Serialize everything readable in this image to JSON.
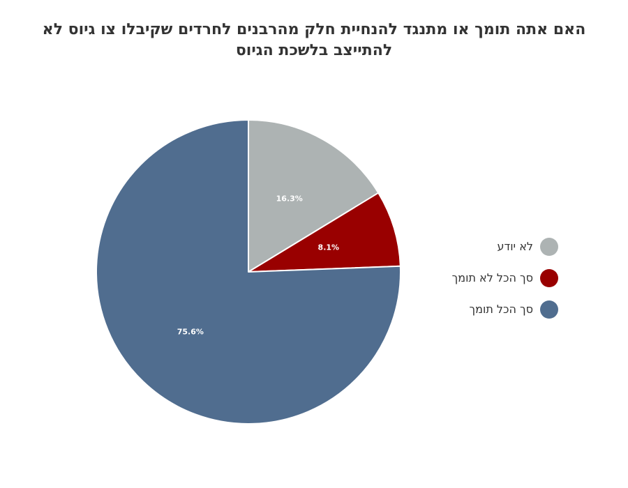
{
  "chart_data": {
    "type": "pie",
    "title": "האם אתה תומך או מתנגד להנחיית חלק מהרבנים לחרדים שקיבלו צו גיוס לא להתייצב בלשכת הגיוס",
    "legend_position": "right",
    "slices": [
      {
        "label": "לא יודע",
        "value": 16.3,
        "value_label": "16.3%",
        "color": "#adb3b3"
      },
      {
        "label": "סך הכל לא תומך",
        "value": 8.1,
        "value_label": "8.1%",
        "color": "#990000"
      },
      {
        "label": "סך הכל תומך",
        "value": 75.6,
        "value_label": "75.6%",
        "color": "#506d8f"
      }
    ]
  }
}
